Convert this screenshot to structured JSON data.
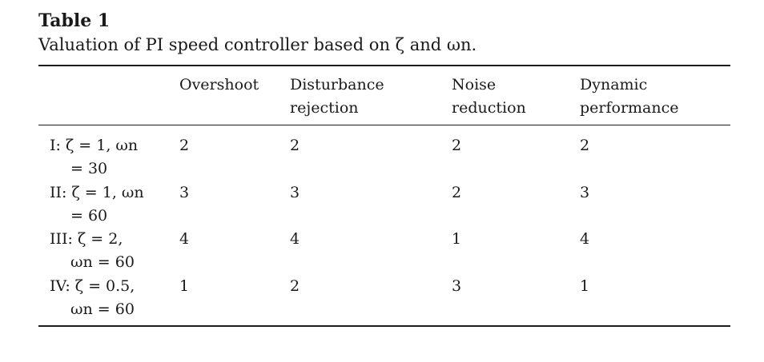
{
  "table": {
    "label": "Table 1",
    "caption": "Valuation of PI speed controller based on ζ and ωn.",
    "headers": [
      {
        "line1": "Overshoot",
        "line2": ""
      },
      {
        "line1": "Disturbance",
        "line2": "rejection"
      },
      {
        "line1": "Noise",
        "line2": "reduction"
      },
      {
        "line1": "Dynamic",
        "line2": "performance"
      }
    ],
    "rows": [
      {
        "label_line1": "I: ζ = 1, ωn",
        "label_line2": "= 30",
        "values": [
          "2",
          "2",
          "2",
          "2"
        ]
      },
      {
        "label_line1": "II: ζ = 1, ωn",
        "label_line2": "= 60",
        "values": [
          "3",
          "3",
          "2",
          "3"
        ]
      },
      {
        "label_line1": "III: ζ = 2,",
        "label_line2": "ωn = 60",
        "values": [
          "4",
          "4",
          "1",
          "4"
        ]
      },
      {
        "label_line1": "IV: ζ = 0.5,",
        "label_line2": "ωn = 60",
        "values": [
          "1",
          "2",
          "3",
          "1"
        ]
      }
    ]
  }
}
